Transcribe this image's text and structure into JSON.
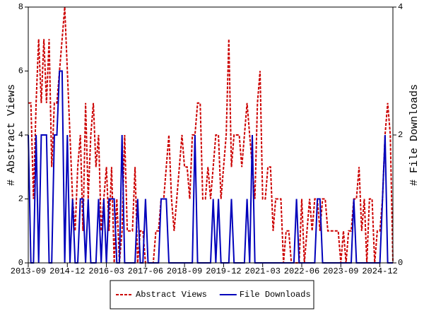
{
  "chart_data": {
    "type": "line",
    "y_label": "# Abstract Views",
    "y2_label": "# File Downloads",
    "ylim": [
      0,
      8
    ],
    "yticks": [
      0,
      2,
      4,
      6,
      8
    ],
    "y2lim": [
      0,
      4
    ],
    "y2ticks": [
      0,
      2,
      4
    ],
    "x_start": "2013-09",
    "x_end": "2025-05",
    "xticks": [
      "2013-09",
      "2014-12",
      "2016-03",
      "2017-06",
      "2018-09",
      "2019-12",
      "2021-03",
      "2022-06",
      "2023-09",
      "2024-12"
    ],
    "legend": "bottom",
    "series": [
      {
        "name": "Abstract Views",
        "color": "#cc0000",
        "dash": true,
        "values": [
          5,
          5,
          2,
          5,
          7,
          5,
          7,
          5,
          7,
          3,
          5,
          5,
          6,
          7,
          8,
          6,
          4,
          2,
          1,
          3,
          4,
          1,
          5,
          2,
          4,
          5,
          3,
          4,
          1,
          2,
          3,
          1,
          3,
          0,
          2,
          0,
          1,
          4,
          1,
          1,
          1,
          3,
          0,
          1,
          1,
          0,
          0,
          0,
          0,
          1,
          1,
          2,
          2,
          3,
          4,
          2,
          1,
          2,
          3,
          4,
          3,
          3,
          2,
          4,
          4,
          5,
          5,
          2,
          2,
          3,
          2,
          3,
          4,
          4,
          2,
          3,
          4,
          7,
          3,
          4,
          4,
          4,
          3,
          4,
          5,
          4,
          3,
          2,
          5,
          6,
          2,
          2,
          3,
          3,
          1,
          2,
          2,
          2,
          0,
          1,
          1,
          0,
          0,
          0,
          0,
          2,
          0,
          1,
          2,
          1,
          2,
          2,
          1,
          2,
          2,
          1,
          1,
          1,
          1,
          1,
          0,
          1,
          0,
          1,
          1,
          2,
          2,
          3,
          1,
          2,
          0,
          2,
          2,
          0,
          1,
          1,
          2,
          4,
          5,
          4,
          0
        ]
      },
      {
        "name": "File Downloads",
        "color": "#0000bb",
        "axis": "y2",
        "values": [
          2,
          0,
          0,
          2,
          0,
          2,
          2,
          2,
          0,
          0,
          2,
          2,
          3,
          3,
          0,
          2,
          0,
          1,
          0,
          0,
          1,
          1,
          0,
          1,
          0,
          0,
          0,
          1,
          0,
          1,
          0,
          1,
          1,
          1,
          0,
          0,
          2,
          0,
          0,
          0,
          0,
          0,
          1,
          0,
          0,
          1,
          0,
          0,
          0,
          0,
          0,
          1,
          1,
          1,
          0,
          0,
          0,
          0,
          0,
          0,
          0,
          0,
          0,
          0,
          2,
          0,
          0,
          0,
          0,
          0,
          0,
          1,
          0,
          1,
          0,
          0,
          0,
          0,
          1,
          0,
          0,
          0,
          0,
          0,
          1,
          0,
          2,
          0,
          0,
          0,
          0,
          0,
          0,
          0,
          0,
          0,
          0,
          0,
          0,
          0,
          0,
          0,
          0,
          1,
          0,
          0,
          0,
          0,
          0,
          0,
          0,
          1,
          1,
          0,
          0,
          0,
          0,
          0,
          0,
          0,
          0,
          0,
          0,
          0,
          0,
          1,
          0,
          0,
          0,
          0,
          0,
          0,
          0,
          0,
          0,
          0,
          1,
          2,
          0,
          0,
          0
        ]
      }
    ]
  }
}
